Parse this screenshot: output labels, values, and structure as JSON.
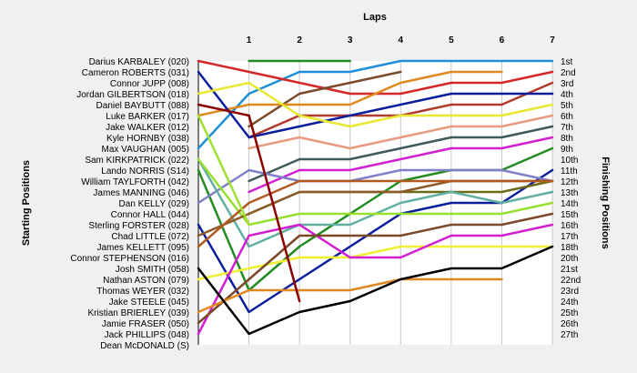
{
  "chart_data": {
    "type": "line",
    "title": "Laps",
    "ylabel_left": "Starting Positions",
    "ylabel_right": "Finishing Positions",
    "x_ticks": [
      "1",
      "2",
      "3",
      "4",
      "5",
      "6",
      "7"
    ],
    "x_range": [
      0,
      7
    ],
    "position_range": [
      1,
      27
    ],
    "grid": true,
    "start_labels": [
      "Darius KARBALEY (020)",
      "Cameron ROBERTS (031)",
      "Connor JUPP (008)",
      "Jordan GILBERTSON (018)",
      "Daniel BAYBUTT (088)",
      "Luke BARKER (017)",
      "Jake WALKER (012)",
      "Kyle HORNBY (038)",
      "Max VAUGHAN (005)",
      "Sam KIRKPATRICK (022)",
      "Lando NORRIS (S14)",
      "William TAYLFORTH (042)",
      "James MANNING (046)",
      "Dan KELLY (029)",
      "Connor HALL (044)",
      "Sterling FORSTER (028)",
      "Chad LITTLE (072)",
      "James KELLETT (095)",
      "Connor STEPHENSON (016)",
      "Josh SMITH (058)",
      "Nathan ASTON (079)",
      "Thomas WEYER (032)",
      "Jake STEELE (045)",
      "Kristian BRIERLEY (039)",
      "Jamie FRASER (050)",
      "Jack PHILLIPS (048)",
      "Dean McDONALD (S)"
    ],
    "finish_labels": [
      "1st",
      "2nd",
      "3rd",
      "4th",
      "5th",
      "6th",
      "7th",
      "8th",
      "9th",
      "10th",
      "11th",
      "12th",
      "13th",
      "14th",
      "15th",
      "16th",
      "17th",
      "18th",
      "20th",
      "21st",
      "22nd",
      "23rd",
      "24th",
      "25th",
      "26th",
      "27th"
    ],
    "series": [
      {
        "color": "#1e8fd8",
        "x": [
          0,
          1,
          2,
          3,
          4,
          5,
          6,
          7
        ],
        "y": [
          9,
          4,
          2,
          2,
          1,
          1,
          1,
          1
        ]
      },
      {
        "color": "#d62728",
        "x": [
          0,
          1,
          2,
          3,
          4,
          5,
          6,
          7
        ],
        "y": [
          1,
          2,
          3,
          4,
          4,
          3,
          3,
          2
        ]
      },
      {
        "color": "#228b22",
        "x": [
          1,
          2,
          3
        ],
        "y": [
          1,
          1,
          1
        ]
      },
      {
        "color": "#7b4a2a",
        "x": [
          1,
          2,
          3,
          4
        ],
        "y": [
          7,
          4,
          3,
          2
        ]
      },
      {
        "color": "#e0881f",
        "x": [
          0,
          1,
          2,
          3,
          4,
          5,
          6
        ],
        "y": [
          6,
          5,
          5,
          5,
          3,
          2,
          2
        ]
      },
      {
        "color": "#b03a2e",
        "x": [
          1,
          2,
          3,
          4,
          5,
          6,
          7
        ],
        "y": [
          8,
          6,
          6,
          6,
          5,
          5,
          3
        ]
      },
      {
        "color": "#0b1f9c",
        "x": [
          0,
          1,
          2,
          3,
          4,
          5,
          6,
          7
        ],
        "y": [
          2,
          8,
          7,
          6,
          5,
          4,
          4,
          4
        ]
      },
      {
        "color": "#e8e830",
        "x": [
          0,
          1,
          2,
          3,
          4,
          5,
          6,
          7
        ],
        "y": [
          4,
          3,
          6,
          7,
          6,
          6,
          6,
          5
        ]
      },
      {
        "color": "#e89a80",
        "x": [
          1,
          2,
          3,
          4,
          5,
          6,
          7
        ],
        "y": [
          9,
          8,
          9,
          8,
          7,
          7,
          6
        ]
      },
      {
        "color": "#3e5a5a",
        "x": [
          1,
          2,
          3,
          4,
          5,
          6,
          7
        ],
        "y": [
          12,
          10,
          10,
          9,
          8,
          8,
          7
        ]
      },
      {
        "color": "#d21fd2",
        "x": [
          1,
          2,
          3,
          4,
          5,
          6,
          7
        ],
        "y": [
          13,
          11,
          11,
          10,
          9,
          9,
          8
        ]
      },
      {
        "color": "#228b22",
        "x": [
          0,
          1,
          2,
          3,
          4,
          5,
          6,
          7
        ],
        "y": [
          11,
          22,
          18,
          15,
          12,
          11,
          11,
          9
        ]
      },
      {
        "color": "#0b1f9c",
        "x": [
          0,
          1,
          2,
          3,
          4,
          5,
          6,
          7
        ],
        "y": [
          16,
          24,
          21,
          18,
          15,
          14,
          14,
          11
        ]
      },
      {
        "color": "#8080c8",
        "x": [
          0,
          1,
          2,
          3,
          4,
          5,
          6,
          7
        ],
        "y": [
          14,
          11,
          12,
          12,
          11,
          11,
          11,
          12
        ]
      },
      {
        "color": "#6b6b18",
        "x": [
          1,
          2,
          3,
          4,
          5,
          6,
          7
        ],
        "y": [
          15,
          13,
          13,
          13,
          13,
          13,
          12
        ]
      },
      {
        "color": "#5fb0a0",
        "x": [
          0,
          1,
          2,
          3,
          4,
          5,
          6,
          7
        ],
        "y": [
          10,
          18,
          16,
          16,
          14,
          13,
          14,
          13
        ]
      },
      {
        "color": "#98e030",
        "x": [
          0,
          1,
          2,
          3,
          4,
          5,
          6,
          7
        ],
        "y": [
          10,
          16,
          15,
          15,
          15,
          15,
          15,
          14
        ]
      },
      {
        "color": "#8c5a2a",
        "x": [
          0,
          1,
          2,
          3,
          4,
          5,
          6,
          7
        ],
        "y": [
          17,
          15,
          13,
          13,
          13,
          12,
          12,
          12
        ]
      },
      {
        "color": "#b05a20",
        "x": [
          0,
          1,
          2,
          3,
          4,
          5,
          6,
          7
        ],
        "y": [
          18,
          14,
          12,
          12,
          12,
          12,
          12,
          12
        ]
      },
      {
        "color": "#f0f030",
        "x": [
          0,
          1,
          2,
          3,
          4,
          5,
          6,
          7
        ],
        "y": [
          21,
          20,
          19,
          19,
          18,
          18,
          18,
          18
        ]
      },
      {
        "color": "#d21fd2",
        "x": [
          0,
          1,
          2,
          3,
          4,
          5,
          6,
          7
        ],
        "y": [
          26,
          17,
          16,
          19,
          19,
          17,
          17,
          16
        ]
      },
      {
        "color": "#7b4a2a",
        "x": [
          0,
          1,
          2,
          3,
          4,
          5,
          6,
          7
        ],
        "y": [
          25,
          21,
          17,
          17,
          17,
          16,
          16,
          15
        ]
      },
      {
        "color": "#e0881f",
        "x": [
          0,
          1,
          2,
          3,
          4,
          5,
          6
        ],
        "y": [
          24,
          22,
          22,
          22,
          21,
          21,
          21
        ]
      },
      {
        "color": "#000000",
        "x": [
          0,
          1,
          2,
          3,
          4,
          5,
          6,
          7
        ],
        "y": [
          20,
          26,
          24,
          23,
          21,
          20,
          20,
          18
        ]
      },
      {
        "color": "#8b0000",
        "x": [
          0,
          1,
          2
        ],
        "y": [
          5,
          6,
          23
        ]
      },
      {
        "color": "#a0e030",
        "x": [
          0,
          1
        ],
        "y": [
          6,
          16
        ]
      }
    ]
  }
}
